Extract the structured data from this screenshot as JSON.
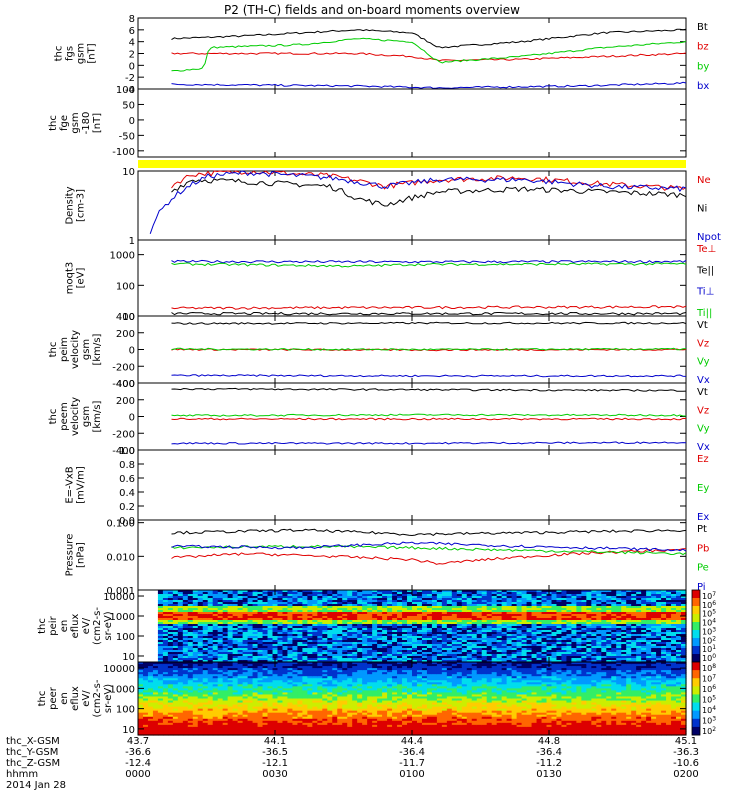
{
  "title": "P2 (TH-C) fields and on-board moments overview",
  "colors": {
    "black": "#000000",
    "red": "#e00000",
    "green": "#00cc00",
    "blue": "#0000cc",
    "yellow": "#ffff00"
  },
  "footer": {
    "row_labels": [
      "thc_X-GSM",
      "thc_Y-GSM",
      "thc_Z-GSM",
      "hhmm",
      "2014 Jan 28"
    ],
    "columns": [
      {
        "x": "43.7",
        "y": "-36.6",
        "z": "-12.4",
        "t": "0000"
      },
      {
        "x": "44.1",
        "y": "-36.5",
        "z": "-12.1",
        "t": "0030"
      },
      {
        "x": "44.4",
        "y": "-36.4",
        "z": "-11.7",
        "t": "0100"
      },
      {
        "x": "44.8",
        "y": "-36.4",
        "z": "-11.2",
        "t": "0130"
      },
      {
        "x": "45.1",
        "y": "-36.3",
        "z": "-10.6",
        "t": "0200"
      }
    ]
  },
  "chart_data": [
    {
      "id": "fgs",
      "type": "line",
      "ylabel": [
        "thc",
        "fgs",
        "gsm",
        "[nT]"
      ],
      "ylim": [
        -4,
        8
      ],
      "yticks": [
        "8",
        "6",
        "4",
        "2",
        "0",
        "-2",
        "-4"
      ],
      "series": [
        {
          "name": "Bt",
          "color": "#000000",
          "values": [
            [
              0.06,
              4.5
            ],
            [
              0.2,
              5
            ],
            [
              0.4,
              6
            ],
            [
              0.5,
              5.5
            ],
            [
              0.55,
              3
            ],
            [
              0.7,
              4
            ],
            [
              0.85,
              5.5
            ],
            [
              1,
              6
            ]
          ]
        },
        {
          "name": "bz",
          "color": "#e00000",
          "values": [
            [
              0.06,
              2
            ],
            [
              0.2,
              2
            ],
            [
              0.4,
              2
            ],
            [
              0.5,
              1.5
            ],
            [
              0.55,
              0.8
            ],
            [
              0.7,
              1
            ],
            [
              0.85,
              1.5
            ],
            [
              1,
              2
            ]
          ]
        },
        {
          "name": "by",
          "color": "#00cc00",
          "values": [
            [
              0.06,
              -1
            ],
            [
              0.12,
              -0.5
            ],
            [
              0.13,
              3
            ],
            [
              0.3,
              3.5
            ],
            [
              0.4,
              4.5
            ],
            [
              0.5,
              4
            ],
            [
              0.55,
              0.5
            ],
            [
              0.7,
              1.5
            ],
            [
              0.85,
              3
            ],
            [
              1,
              4
            ]
          ]
        },
        {
          "name": "bx",
          "color": "#0000cc",
          "values": [
            [
              0.06,
              -3.2
            ],
            [
              0.4,
              -3.5
            ],
            [
              0.55,
              -3.8
            ],
            [
              0.8,
              -3.5
            ],
            [
              1,
              -3
            ]
          ]
        }
      ]
    },
    {
      "id": "fge",
      "type": "line",
      "ylabel": [
        "thc",
        "fge",
        "gsm",
        "-180",
        "[nT]"
      ],
      "ylim": [
        -120,
        100
      ],
      "yticks": [
        "100",
        "50",
        "0",
        "-50",
        "-100"
      ],
      "series": []
    },
    {
      "id": "density",
      "type": "line",
      "ylabel": [
        "Density",
        "[cm-3]"
      ],
      "ylim": [
        1,
        10
      ],
      "yscale": "log",
      "yticks": [
        "10",
        "1"
      ],
      "series": [
        {
          "name": "Ne",
          "color": "#e00000",
          "values": [
            [
              0.06,
              6
            ],
            [
              0.1,
              9
            ],
            [
              0.2,
              10
            ],
            [
              0.35,
              8.5
            ],
            [
              0.45,
              6
            ],
            [
              0.55,
              7.5
            ],
            [
              0.7,
              8
            ],
            [
              0.85,
              6.5
            ],
            [
              1,
              5.5
            ]
          ]
        },
        {
          "name": "Ni",
          "color": "#000000",
          "values": [
            [
              0.06,
              5
            ],
            [
              0.1,
              7.5
            ],
            [
              0.2,
              7
            ],
            [
              0.35,
              6
            ],
            [
              0.4,
              4
            ],
            [
              0.45,
              3.2
            ],
            [
              0.55,
              5
            ],
            [
              0.7,
              5.5
            ],
            [
              0.85,
              5
            ],
            [
              1,
              4.5
            ]
          ]
        },
        {
          "name": "Npot",
          "color": "#0000cc",
          "values": [
            [
              0.02,
              1.2
            ],
            [
              0.13,
              8.5
            ],
            [
              0.2,
              9.5
            ],
            [
              0.35,
              8
            ],
            [
              0.45,
              6
            ],
            [
              0.55,
              7.5
            ],
            [
              0.7,
              7.5
            ],
            [
              0.85,
              6
            ],
            [
              1,
              5.5
            ]
          ]
        }
      ]
    },
    {
      "id": "temperature",
      "type": "line",
      "ylabel": [
        "moqt3",
        "[eV]"
      ],
      "ylim": [
        10,
        3000
      ],
      "yscale": "log",
      "yticks": [
        "1000",
        "100",
        "10"
      ],
      "series": [
        {
          "name": "Te⊥",
          "color": "#e00000",
          "values": [
            [
              0.06,
              18
            ],
            [
              0.5,
              19
            ],
            [
              1,
              20
            ]
          ]
        },
        {
          "name": "Te||",
          "color": "#000000",
          "values": [
            [
              0.06,
              12
            ],
            [
              0.5,
              12
            ],
            [
              1,
              12
            ]
          ]
        },
        {
          "name": "Ti⊥",
          "color": "#0000cc",
          "values": [
            [
              0.06,
              600
            ],
            [
              0.5,
              580
            ],
            [
              1,
              600
            ]
          ]
        },
        {
          "name": "Ti||",
          "color": "#00cc00",
          "values": [
            [
              0.06,
              500
            ],
            [
              0.4,
              420
            ],
            [
              0.5,
              480
            ],
            [
              1,
              500
            ]
          ]
        }
      ]
    },
    {
      "id": "peim_velocity",
      "type": "line",
      "ylabel": [
        "thc",
        "peim",
        "velocity",
        "gsm",
        "[km/s]"
      ],
      "ylim": [
        -400,
        400
      ],
      "yticks": [
        "400",
        "200",
        "0",
        "-200",
        "-400"
      ],
      "series": [
        {
          "name": "Vt",
          "color": "#000000",
          "values": [
            [
              0.06,
              310
            ],
            [
              0.5,
              315
            ],
            [
              1,
              315
            ]
          ]
        },
        {
          "name": "Vz",
          "color": "#e00000",
          "values": [
            [
              0.06,
              0
            ],
            [
              0.5,
              -5
            ],
            [
              1,
              0
            ]
          ]
        },
        {
          "name": "Vy",
          "color": "#00cc00",
          "values": [
            [
              0.06,
              5
            ],
            [
              0.5,
              0
            ],
            [
              1,
              5
            ]
          ]
        },
        {
          "name": "Vx",
          "color": "#0000cc",
          "values": [
            [
              0.06,
              -310
            ],
            [
              0.5,
              -315
            ],
            [
              1,
              -315
            ]
          ]
        }
      ]
    },
    {
      "id": "peem_velocity",
      "type": "line",
      "ylabel": [
        "thc",
        "peem",
        "velocity",
        "gsm",
        "[km/s]"
      ],
      "ylim": [
        -400,
        400
      ],
      "yticks": [
        "400",
        "200",
        "0",
        "-200",
        "-400"
      ],
      "series": [
        {
          "name": "Vt",
          "color": "#000000",
          "values": [
            [
              0.06,
              330
            ],
            [
              0.5,
              320
            ],
            [
              1,
              310
            ]
          ]
        },
        {
          "name": "Vz",
          "color": "#e00000",
          "values": [
            [
              0.06,
              -30
            ],
            [
              0.5,
              -30
            ],
            [
              1,
              -30
            ]
          ]
        },
        {
          "name": "Vy",
          "color": "#00cc00",
          "values": [
            [
              0.06,
              10
            ],
            [
              0.5,
              20
            ],
            [
              1,
              15
            ]
          ]
        },
        {
          "name": "Vx",
          "color": "#0000cc",
          "values": [
            [
              0.06,
              -320
            ],
            [
              0.5,
              -320
            ],
            [
              1,
              -310
            ]
          ]
        }
      ]
    },
    {
      "id": "efield",
      "type": "line",
      "ylabel": [
        "E=-VxB",
        "[mV/m]"
      ],
      "ylim": [
        0,
        1
      ],
      "yticks": [
        "1.0",
        "0.8",
        "0.6",
        "0.4",
        "0.2",
        "0.0"
      ],
      "series": [
        {
          "name": "Ez",
          "color": "#e00000",
          "values": []
        },
        {
          "name": "Ey",
          "color": "#00cc00",
          "values": []
        },
        {
          "name": "Ex",
          "color": "#0000cc",
          "values": []
        }
      ]
    },
    {
      "id": "pressure",
      "type": "line",
      "ylabel": [
        "Pressure",
        "[nPa]"
      ],
      "ylim": [
        0.001,
        0.12
      ],
      "yscale": "log",
      "yticks": [
        "0.100",
        "0.010",
        "0.001"
      ],
      "series": [
        {
          "name": "Pt",
          "color": "#000000",
          "values": [
            [
              0.06,
              0.05
            ],
            [
              0.3,
              0.06
            ],
            [
              0.5,
              0.045
            ],
            [
              0.7,
              0.05
            ],
            [
              1,
              0.06
            ]
          ]
        },
        {
          "name": "Pb",
          "color": "#e00000",
          "values": [
            [
              0.06,
              0.009
            ],
            [
              0.2,
              0.012
            ],
            [
              0.5,
              0.008
            ],
            [
              0.55,
              0.006
            ],
            [
              0.8,
              0.012
            ],
            [
              1,
              0.016
            ]
          ]
        },
        {
          "name": "Pe",
          "color": "#00cc00",
          "values": [
            [
              0.06,
              0.018
            ],
            [
              0.3,
              0.02
            ],
            [
              0.5,
              0.018
            ],
            [
              0.7,
              0.015
            ],
            [
              1,
              0.012
            ]
          ]
        },
        {
          "name": "Pi",
          "color": "#0000cc",
          "values": [
            [
              0.06,
              0.02
            ],
            [
              0.3,
              0.018
            ],
            [
              0.5,
              0.025
            ],
            [
              0.7,
              0.02
            ],
            [
              1,
              0.015
            ]
          ]
        }
      ]
    },
    {
      "id": "peir_spectrogram",
      "type": "heatmap",
      "ylabel": [
        "thc",
        "peir",
        "en",
        "eflux",
        "eV/",
        "(cm2-s-",
        "sr-eV)"
      ],
      "yscale": "log",
      "ylim": [
        5,
        20000
      ],
      "yticks": [
        "10000",
        "1000",
        "100",
        "10"
      ],
      "colorbar": {
        "ticks": [
          "10^7",
          "10^6",
          "10^5",
          "10^4",
          "10^3",
          "10^2",
          "10^1",
          "10^0"
        ]
      }
    },
    {
      "id": "peer_spectrogram",
      "type": "heatmap",
      "ylabel": [
        "thc",
        "peer",
        "en",
        "eflux",
        "eV/",
        "(cm2-s-",
        "sr-eV)"
      ],
      "yscale": "log",
      "ylim": [
        5,
        20000
      ],
      "yticks": [
        "10000",
        "1000",
        "100",
        "10"
      ],
      "colorbar": {
        "ticks": [
          "10^8",
          "10^7",
          "10^6",
          "10^5",
          "10^4",
          "10^3",
          "10^2"
        ]
      }
    }
  ]
}
